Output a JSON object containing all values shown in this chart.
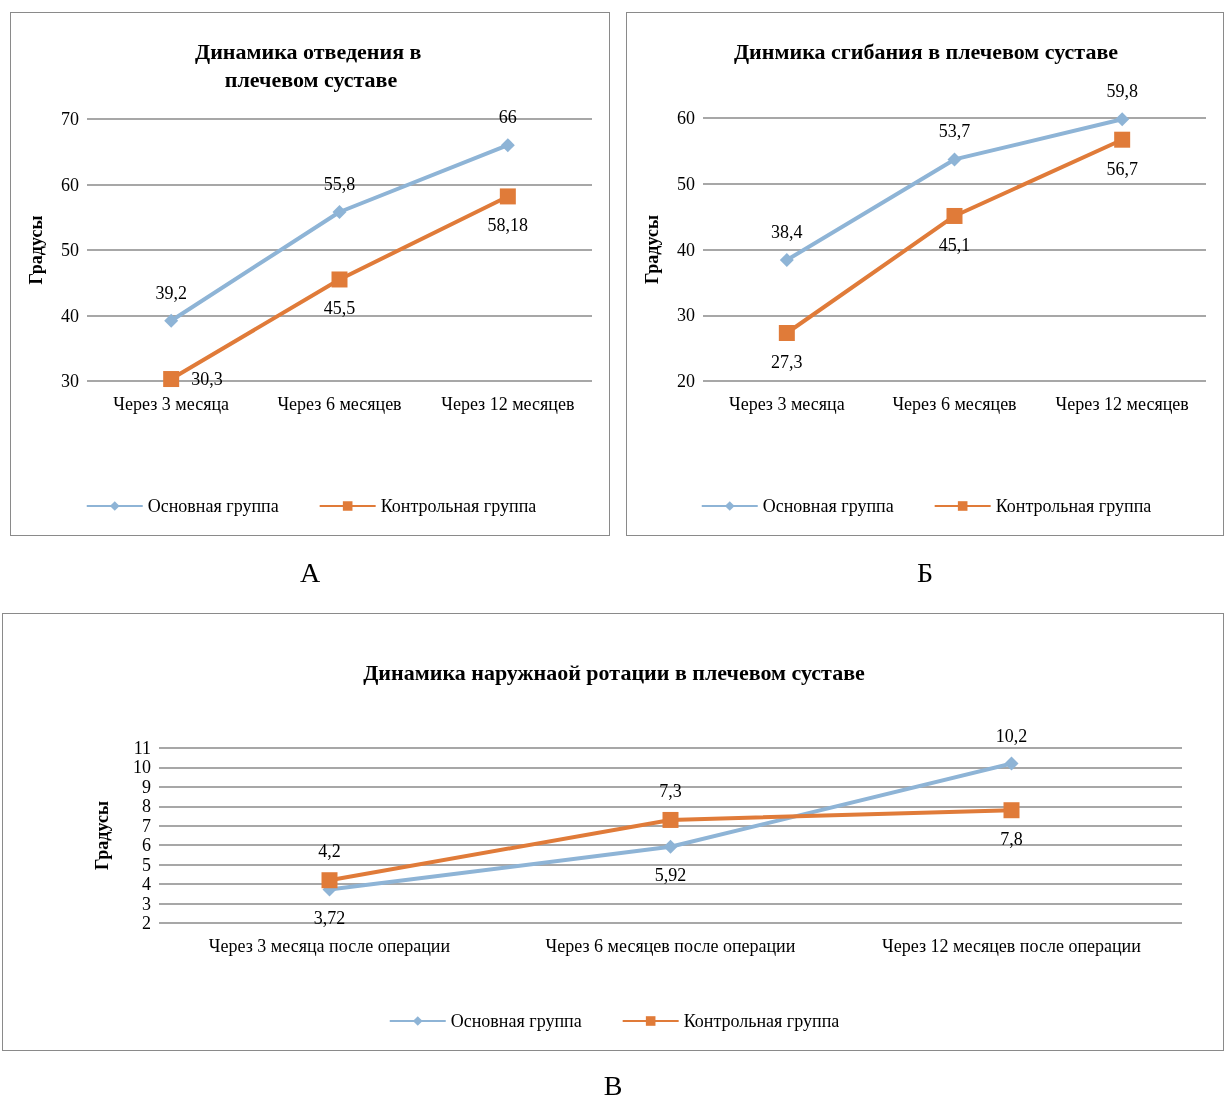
{
  "chart_data": [
    {
      "type": "line",
      "title": "Динамика отведения в плечевом суставе",
      "ylabel": "Градусы",
      "categories": [
        "Через 3 месяца",
        "Через 6 месяцев",
        "Через 12 месяцев"
      ],
      "series": [
        {
          "name": "Основная группа",
          "color": "#8eb4d6",
          "marker": "diamond",
          "values": [
            39.2,
            55.8,
            66
          ],
          "value_labels": [
            "39,2",
            "55,8",
            "66"
          ]
        },
        {
          "name": "Контрольная группа",
          "color": "#e07b39",
          "marker": "square",
          "values": [
            30.3,
            45.5,
            58.18
          ],
          "value_labels": [
            "30,3",
            "45,5",
            "58,18"
          ]
        }
      ],
      "ylim": [
        30,
        70
      ],
      "yticks": [
        30,
        40,
        50,
        60,
        70
      ],
      "grid": "y",
      "legend": "bottom",
      "annotations": [
        "А"
      ]
    },
    {
      "type": "line",
      "title": "Динмика сгибания в плечевом суставе",
      "ylabel": "Градусы",
      "categories": [
        "Через 3 месяца",
        "Через 6 месяцев",
        "Через 12 месяцев"
      ],
      "series": [
        {
          "name": "Основная группа",
          "color": "#8eb4d6",
          "marker": "diamond",
          "values": [
            38.4,
            53.7,
            59.8
          ],
          "value_labels": [
            "38,4",
            "53,7",
            "59,8"
          ]
        },
        {
          "name": "Контрольная группа",
          "color": "#e07b39",
          "marker": "square",
          "values": [
            27.3,
            45.1,
            56.7
          ],
          "value_labels": [
            "27,3",
            "45,1",
            "56,7"
          ]
        }
      ],
      "ylim": [
        20,
        60
      ],
      "yticks": [
        20,
        30,
        40,
        50,
        60
      ],
      "grid": "y",
      "legend": "bottom",
      "annotations": [
        "Б"
      ]
    },
    {
      "type": "line",
      "title": "Динамика наружнаой ротации в плечевом суставе",
      "ylabel": "Градусы",
      "categories": [
        "Через 3 месяца после операции",
        "Через 6 месяцев после операции",
        "Через 12 месяцев после операции"
      ],
      "series": [
        {
          "name": "Основная группа",
          "color": "#8eb4d6",
          "marker": "diamond",
          "values": [
            3.72,
            5.92,
            10.2
          ],
          "value_labels": [
            "3,72",
            "5,92",
            "10,2"
          ]
        },
        {
          "name": "Контрольная группа",
          "color": "#e07b39",
          "marker": "square",
          "values": [
            4.2,
            7.3,
            7.8
          ],
          "value_labels": [
            "4,2",
            "7,3",
            "7,8"
          ]
        }
      ],
      "ylim": [
        2,
        11
      ],
      "yticks": [
        2,
        3,
        4,
        5,
        6,
        7,
        8,
        9,
        10,
        11
      ],
      "grid": "y",
      "legend": "bottom",
      "annotations": [
        "В"
      ]
    }
  ]
}
